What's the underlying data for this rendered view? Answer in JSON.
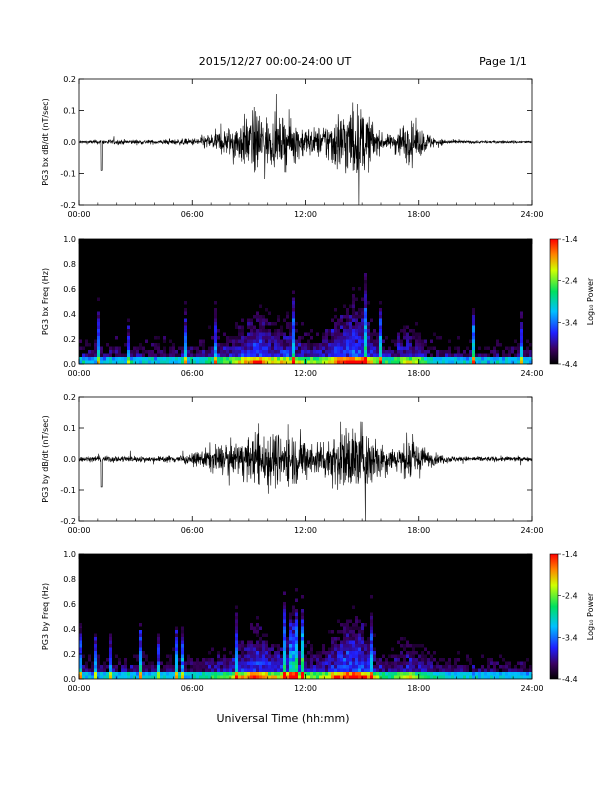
{
  "header": {
    "title": "2015/12/27  00:00-24:00 UT",
    "page": "Page 1/1"
  },
  "xlabel": "Universal Time (hh:mm)",
  "chart_data": [
    {
      "type": "line",
      "ylabel": "PG3 bx dB/dt (nT/sec)",
      "xlim": [
        0,
        24
      ],
      "ylim": [
        -0.2,
        0.2
      ],
      "xticks": [
        "00:00",
        "06:00",
        "12:00",
        "18:00",
        "24:00"
      ],
      "yticks": [
        "-0.2",
        "-0.1",
        "0.0",
        "0.1",
        "0.2"
      ],
      "amplitude_envelope": {
        "x": [
          0,
          2,
          4,
          6,
          7,
          8,
          9,
          9.5,
          10,
          10.5,
          11,
          11.5,
          12,
          12.5,
          13,
          13.5,
          14,
          14.5,
          15,
          15.5,
          16,
          16.5,
          17,
          17.5,
          18,
          18.5,
          19,
          20,
          21,
          22,
          23,
          24
        ],
        "y": [
          0.01,
          0.015,
          0.012,
          0.02,
          0.05,
          0.09,
          0.16,
          0.2,
          0.14,
          0.12,
          0.15,
          0.11,
          0.09,
          0.08,
          0.1,
          0.16,
          0.2,
          0.22,
          0.2,
          0.13,
          0.05,
          0.04,
          0.1,
          0.12,
          0.09,
          0.05,
          0.02,
          0.01,
          0.008,
          0.008,
          0.008,
          0.006
        ]
      }
    },
    {
      "type": "heatmap",
      "ylabel": "PG3 bx Freq (Hz)",
      "xlim": [
        0,
        24
      ],
      "ylim": [
        0,
        1.0
      ],
      "xticks": [
        "00:00",
        "06:00",
        "12:00",
        "18:00",
        "24:00"
      ],
      "yticks": [
        "0.0",
        "0.2",
        "0.4",
        "0.6",
        "0.8",
        "1.0"
      ],
      "colorbar": {
        "label": "Log₁₀ Power",
        "range": [
          -4.4,
          -1.4
        ],
        "ticks": [
          "-1.4",
          "-2.4",
          "-3.4",
          "-4.4"
        ]
      }
    },
    {
      "type": "line",
      "ylabel": "PG3 by dB/dt (nT/sec)",
      "xlim": [
        0,
        24
      ],
      "ylim": [
        -0.2,
        0.2
      ],
      "xticks": [
        "00:00",
        "06:00",
        "12:00",
        "18:00",
        "24:00"
      ],
      "yticks": [
        "-0.2",
        "-0.1",
        "0.0",
        "0.1",
        "0.2"
      ],
      "amplitude_envelope": {
        "x": [
          0,
          2,
          4,
          6,
          6.5,
          7,
          8,
          9,
          9.5,
          10,
          10.5,
          11,
          11.5,
          12,
          12.5,
          13,
          13.5,
          14,
          14.5,
          15,
          15.5,
          16,
          16.5,
          17,
          17.5,
          18,
          18.5,
          19,
          20,
          21,
          22,
          23,
          24
        ],
        "y": [
          0.015,
          0.02,
          0.015,
          0.03,
          0.05,
          0.08,
          0.09,
          0.12,
          0.17,
          0.19,
          0.15,
          0.16,
          0.15,
          0.12,
          0.1,
          0.12,
          0.15,
          0.19,
          0.2,
          0.22,
          0.15,
          0.12,
          0.07,
          0.08,
          0.13,
          0.1,
          0.05,
          0.03,
          0.015,
          0.015,
          0.015,
          0.015,
          0.012
        ]
      }
    },
    {
      "type": "heatmap",
      "ylabel": "PG3 by Freq (Hz)",
      "xlim": [
        0,
        24
      ],
      "ylim": [
        0,
        1.0
      ],
      "xticks": [
        "00:00",
        "06:00",
        "12:00",
        "18:00",
        "24:00"
      ],
      "yticks": [
        "0.0",
        "0.2",
        "0.4",
        "0.6",
        "0.8",
        "1.0"
      ],
      "colorbar": {
        "label": "Log₁₀ Power",
        "range": [
          -4.4,
          -1.4
        ],
        "ticks": [
          "-1.4",
          "-2.4",
          "-3.4",
          "-4.4"
        ]
      }
    }
  ]
}
